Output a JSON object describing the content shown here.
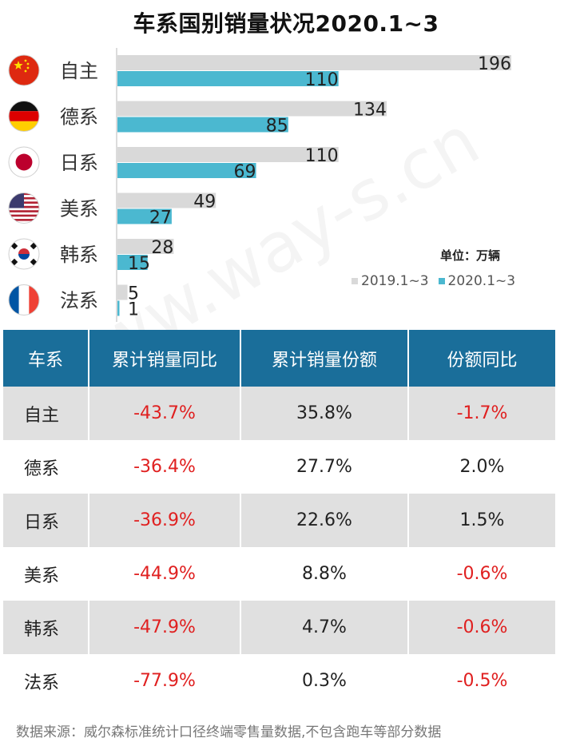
{
  "title": "车系国别销量状况2020.1~3",
  "watermark": "www.way-s.cn",
  "chart_data": {
    "type": "bar",
    "orientation": "horizontal",
    "categories": [
      "自主",
      "德系",
      "日系",
      "美系",
      "韩系",
      "法系"
    ],
    "series": [
      {
        "name": "2019.1~3",
        "values": [
          196,
          134,
          110,
          49,
          28,
          5
        ],
        "color": "#d9d9d9"
      },
      {
        "name": "2020.1~3",
        "values": [
          110,
          85,
          69,
          27,
          15,
          1
        ],
        "color": "#4bb8d0"
      }
    ],
    "unit_label": "单位：万辆",
    "legend_position": "bottom-right",
    "flags": [
      "china-flag-icon",
      "germany-flag-icon",
      "japan-flag-icon",
      "usa-flag-icon",
      "korea-flag-icon",
      "france-flag-icon"
    ]
  },
  "table": {
    "headers": [
      "车系",
      "累计销量同比",
      "累计销量份额",
      "份额同比"
    ],
    "rows": [
      {
        "name": "自主",
        "yoy": "-43.7%",
        "share": "35.8%",
        "share_yoy": "-1.7%"
      },
      {
        "name": "德系",
        "yoy": "-36.4%",
        "share": "27.7%",
        "share_yoy": "2.0%"
      },
      {
        "name": "日系",
        "yoy": "-36.9%",
        "share": "22.6%",
        "share_yoy": "1.5%"
      },
      {
        "name": "美系",
        "yoy": "-44.9%",
        "share": "8.8%",
        "share_yoy": "-0.6%"
      },
      {
        "name": "韩系",
        "yoy": "-47.9%",
        "share": "4.7%",
        "share_yoy": "-0.6%"
      },
      {
        "name": "法系",
        "yoy": "-77.9%",
        "share": "0.3%",
        "share_yoy": "-0.5%"
      }
    ]
  },
  "colors": {
    "header_bg": "#1a6e9a",
    "negative": "#e02020",
    "row_shade": "#e0e0e0"
  },
  "source": "数据来源：威尔森标准统计口径终端零售量数据,不包含跑车等部分数据"
}
